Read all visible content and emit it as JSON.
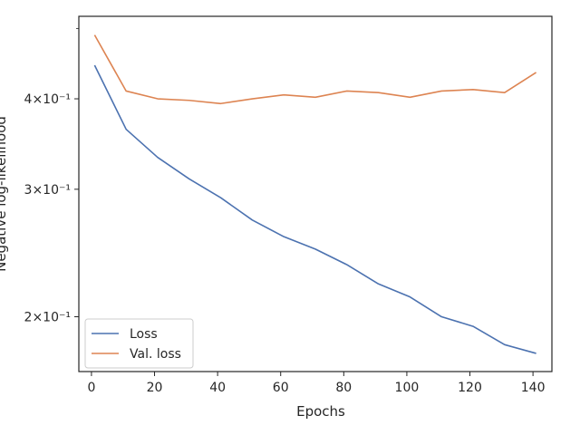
{
  "chart_data": {
    "type": "line",
    "xlabel": "Epochs",
    "ylabel": "Negative log-likelihood",
    "yscale": "log",
    "xlim": [
      -4,
      146
    ],
    "ylim": [
      0.168,
      0.52
    ],
    "xticks": [
      0,
      20,
      40,
      60,
      80,
      100,
      120,
      140
    ],
    "xtick_labels": [
      "0",
      "20",
      "40",
      "60",
      "80",
      "100",
      "120",
      "140"
    ],
    "yticks": [
      0.2,
      0.3,
      0.4
    ],
    "ytick_labels": [
      "2×10⁻¹",
      "3×10⁻¹",
      "4×10⁻¹"
    ],
    "minor_yticks": [
      0.5
    ],
    "grid": false,
    "legend": "lower-left",
    "colors": {
      "Loss": "#4c72b0",
      "Val. loss": "#dd8452"
    },
    "x": [
      1,
      11,
      21,
      31,
      41,
      51,
      61,
      71,
      81,
      91,
      101,
      111,
      121,
      131,
      141
    ],
    "series": [
      {
        "name": "Loss",
        "values": [
          0.445,
          0.363,
          0.332,
          0.31,
          0.292,
          0.272,
          0.258,
          0.248,
          0.236,
          0.222,
          0.213,
          0.2,
          0.194,
          0.183,
          0.178
        ]
      },
      {
        "name": "Val. loss",
        "values": [
          0.49,
          0.41,
          0.4,
          0.398,
          0.394,
          0.4,
          0.405,
          0.402,
          0.41,
          0.408,
          0.402,
          0.41,
          0.412,
          0.408,
          0.435
        ]
      }
    ]
  }
}
